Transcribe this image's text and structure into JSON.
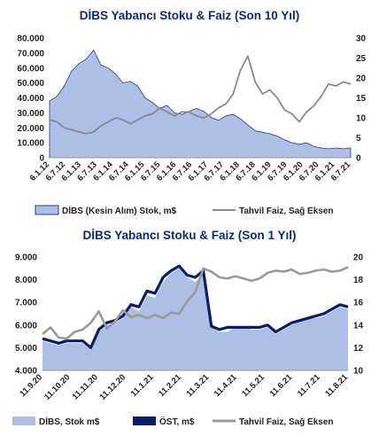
{
  "chart_data": [
    {
      "type": "area",
      "title": "DİBS Yabancı Stoku & Faiz (Son 10 Yıl)",
      "y_ticks": [
        "80.000",
        "70.000",
        "60.000",
        "50.000",
        "40.000",
        "30.000",
        "20.000",
        "10.000",
        "0"
      ],
      "y2_ticks": [
        "30",
        "25",
        "20",
        "15",
        "10",
        "5",
        "0"
      ],
      "ylim": [
        0,
        80000
      ],
      "y2lim": [
        0,
        30
      ],
      "x_ticks": [
        "6.1.12",
        "6.7.12",
        "6.1.13",
        "6.7.13",
        "6.1.14",
        "6.7.14",
        "6.1.15",
        "6.7.15",
        "6.1.16",
        "6.7.16",
        "6.1.17",
        "6.7.17",
        "6.1.18",
        "6.7.18",
        "6.1.19",
        "6.7.19",
        "6.1.20",
        "6.7.20",
        "6.1.21",
        "6.7.21"
      ],
      "series": [
        {
          "name": "DİBS (Kesin Alım) Stok, m$",
          "kind": "area",
          "axis": "left",
          "color": "#aebfe6",
          "values": [
            38000,
            41000,
            48000,
            58000,
            63000,
            66000,
            72000,
            62000,
            60000,
            56000,
            50000,
            51000,
            48000,
            40000,
            37000,
            33000,
            35000,
            30000,
            29000,
            31000,
            33000,
            31000,
            27000,
            25000,
            28000,
            29000,
            26000,
            22000,
            18000,
            17000,
            16000,
            14500,
            12000,
            10000,
            9000,
            10000,
            7500,
            6500,
            6000,
            6500,
            6000,
            6500
          ]
        },
        {
          "name": "Tahvil Faiz, Sağ Eksen",
          "kind": "line",
          "axis": "right",
          "color": "#8a8a8a",
          "values": [
            9.5,
            9.0,
            7.5,
            7.0,
            6.5,
            6.0,
            6.5,
            8.0,
            9.0,
            10.0,
            9.5,
            8.5,
            9.5,
            10.5,
            11.0,
            12.5,
            11.5,
            10.5,
            11.5,
            11.5,
            10.5,
            10.0,
            11.0,
            12.5,
            13.5,
            16.0,
            22.0,
            25.5,
            19.0,
            16.0,
            17.0,
            15.0,
            12.0,
            11.0,
            9.0,
            11.5,
            13.0,
            15.5,
            18.5,
            18.0,
            19.0,
            18.5
          ]
        }
      ]
    },
    {
      "type": "area",
      "title": "DİBS Yabancı Stoku & Faiz (Son 1 Yıl)",
      "y_ticks": [
        "9.000",
        "8.000",
        "7.000",
        "6.000",
        "5.000",
        "4.000"
      ],
      "y2_ticks": [
        "20",
        "18",
        "16",
        "14",
        "12",
        "10"
      ],
      "ylim": [
        4000,
        9000
      ],
      "y2lim": [
        10,
        20
      ],
      "x_ticks": [
        "11.9.20",
        "11.10.20",
        "11.11.20",
        "11.12.20",
        "11.1.21",
        "11.2.21",
        "11.3.21",
        "11.4.21",
        "11.5.21",
        "11.6.21",
        "11.7.21",
        "11.8.21"
      ],
      "series": [
        {
          "name": "DİBS, Stok m$",
          "kind": "area",
          "axis": "left",
          "color": "#aebfe6",
          "values": [
            5300,
            5200,
            5100,
            5200,
            5200,
            5200,
            4900,
            5700,
            6000,
            6100,
            6300,
            6800,
            6600,
            7300,
            7200,
            7900,
            8300,
            8500,
            8100,
            7900,
            8300,
            5900,
            5700,
            5700,
            5900,
            5900,
            5800,
            5800,
            5900,
            5600,
            5800,
            6000,
            6200,
            6300,
            6300,
            6400,
            6600,
            6800,
            6700
          ]
        },
        {
          "name": "ÖST, m$",
          "kind": "line",
          "axis": "left",
          "color": "#0b1e63",
          "values": [
            5400,
            5300,
            5200,
            5300,
            5300,
            5300,
            5000,
            5800,
            6100,
            6200,
            6400,
            6900,
            6800,
            7500,
            7400,
            8100,
            8400,
            8600,
            8200,
            8100,
            8400,
            5950,
            5800,
            5900,
            5900,
            5900,
            5900,
            5900,
            6000,
            5700,
            5900,
            6100,
            6200,
            6300,
            6400,
            6500,
            6700,
            6900,
            6800
          ]
        },
        {
          "name": "Tahvil Faiz, Sağ Eksen",
          "kind": "line",
          "axis": "right",
          "color": "#9a9a9a",
          "values": [
            13.2,
            13.8,
            12.9,
            12.8,
            13.4,
            13.6,
            14.2,
            15.2,
            13.7,
            14.3,
            15.3,
            14.7,
            14.9,
            14.6,
            14.9,
            14.6,
            15.1,
            15.0,
            16.1,
            16.9,
            19.0,
            18.7,
            18.2,
            18.1,
            18.3,
            18.1,
            17.9,
            18.1,
            18.6,
            18.8,
            18.7,
            18.9,
            18.5,
            18.6,
            18.8,
            18.9,
            18.7,
            18.8,
            19.1
          ]
        }
      ]
    }
  ]
}
